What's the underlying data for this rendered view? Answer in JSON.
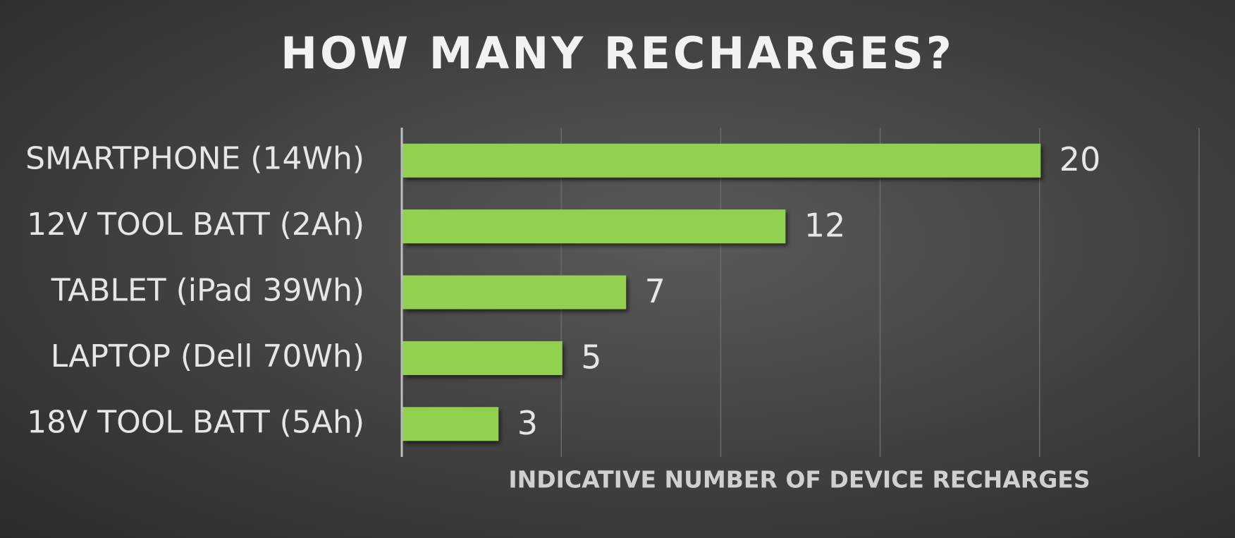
{
  "chart_data": {
    "type": "hbar",
    "title": "HOW MANY RECHARGES?",
    "categories": [
      "SMARTPHONE (14Wh)",
      "12V TOOL BATT (2Ah)",
      "TABLET (iPad 39Wh)",
      "LAPTOP (Dell 70Wh)",
      "18V TOOL BATT (5Ah)"
    ],
    "values": [
      20,
      12,
      7,
      5,
      3
    ],
    "color": "#92d050",
    "xlabel": "INDICATIVE NUMBER OF DEVICE RECHARGES",
    "xlim": [
      0,
      25
    ],
    "xticks": [
      0,
      5,
      10,
      15,
      20,
      25
    ],
    "grid": true
  }
}
